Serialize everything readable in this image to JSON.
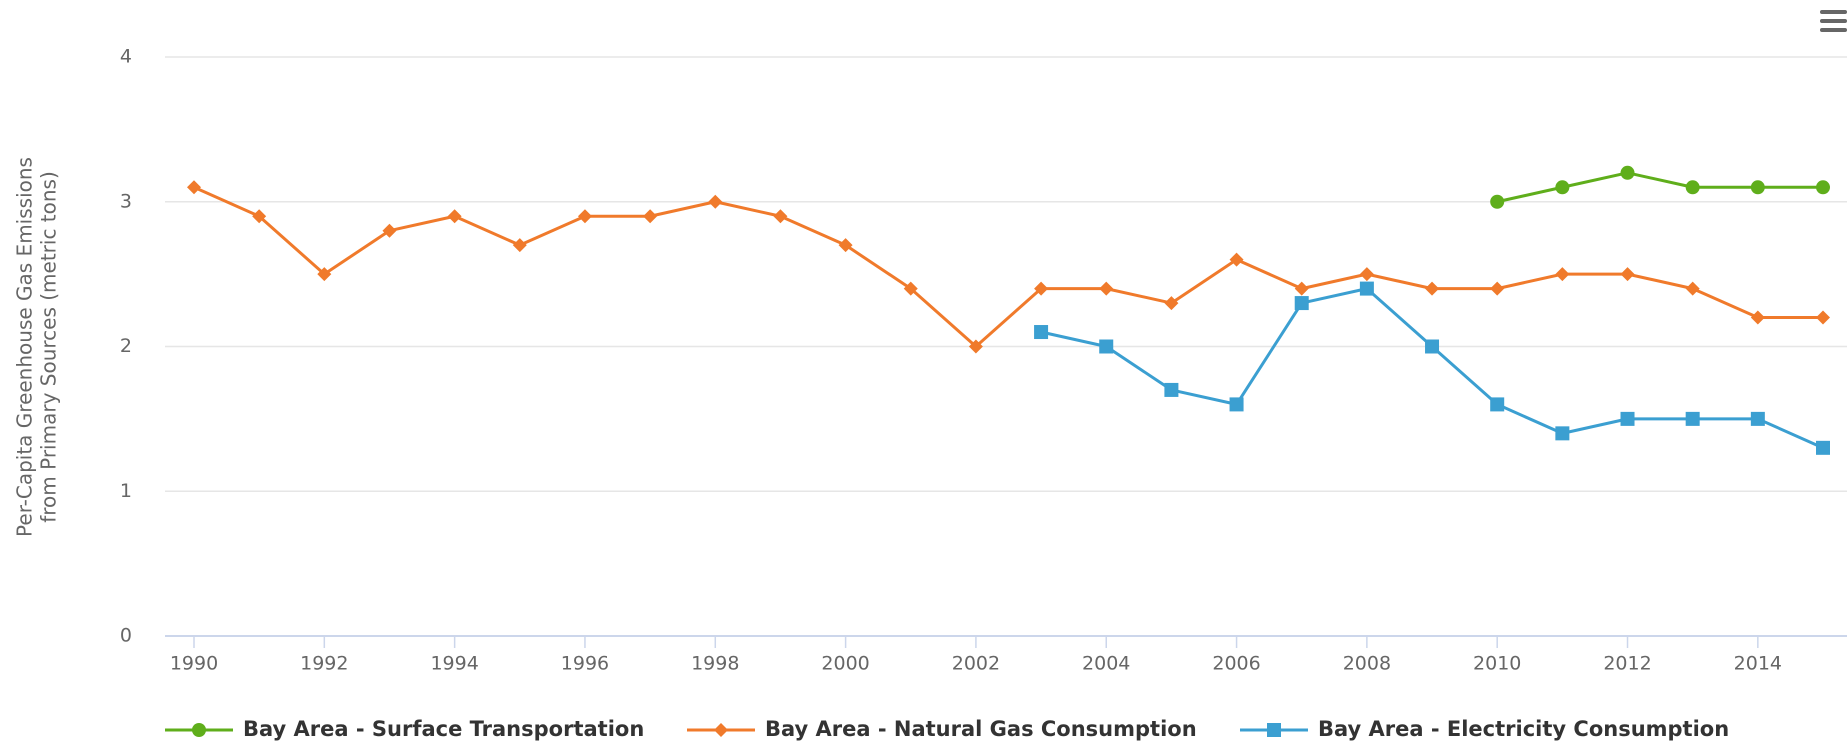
{
  "chart_data": {
    "type": "line",
    "ylabel": [
      "Per-Capita Greenhouse Gas Emissions",
      "from Primary Sources (metric tons)"
    ],
    "x": [
      1990,
      1991,
      1992,
      1993,
      1994,
      1995,
      1996,
      1997,
      1998,
      1999,
      2000,
      2001,
      2002,
      2003,
      2004,
      2005,
      2006,
      2007,
      2008,
      2009,
      2010,
      2011,
      2012,
      2013,
      2014,
      2015
    ],
    "series": [
      {
        "name": "Bay Area - Surface Transportation",
        "color": "#5fae1b",
        "marker": "circle",
        "values": [
          null,
          null,
          null,
          null,
          null,
          null,
          null,
          null,
          null,
          null,
          null,
          null,
          null,
          null,
          null,
          null,
          null,
          null,
          null,
          null,
          3.0,
          3.1,
          3.2,
          3.1,
          3.1,
          3.1
        ]
      },
      {
        "name": "Bay Area - Natural Gas Consumption",
        "color": "#f07a2b",
        "marker": "diamond",
        "values": [
          3.1,
          2.9,
          2.5,
          2.8,
          2.9,
          2.7,
          2.9,
          2.9,
          3.0,
          2.9,
          2.7,
          2.4,
          2.0,
          2.4,
          2.4,
          2.3,
          2.6,
          2.4,
          2.5,
          2.4,
          2.4,
          2.5,
          2.5,
          2.4,
          2.2,
          2.2
        ]
      },
      {
        "name": "Bay Area - Electricity Consumption",
        "color": "#3b9fd1",
        "marker": "square",
        "values": [
          null,
          null,
          null,
          null,
          null,
          null,
          null,
          null,
          null,
          null,
          null,
          null,
          null,
          2.1,
          2.0,
          1.7,
          1.6,
          2.3,
          2.4,
          2.0,
          1.6,
          1.4,
          1.5,
          1.5,
          1.5,
          1.3
        ]
      }
    ],
    "xlim": [
      1990,
      2015
    ],
    "xticks": [
      1990,
      1992,
      1994,
      1996,
      1998,
      2000,
      2002,
      2004,
      2006,
      2008,
      2010,
      2012,
      2014
    ],
    "ylim": [
      0,
      4
    ],
    "yticks": [
      0,
      1,
      2,
      3,
      4
    ],
    "grid": true,
    "legend": "bottom"
  }
}
